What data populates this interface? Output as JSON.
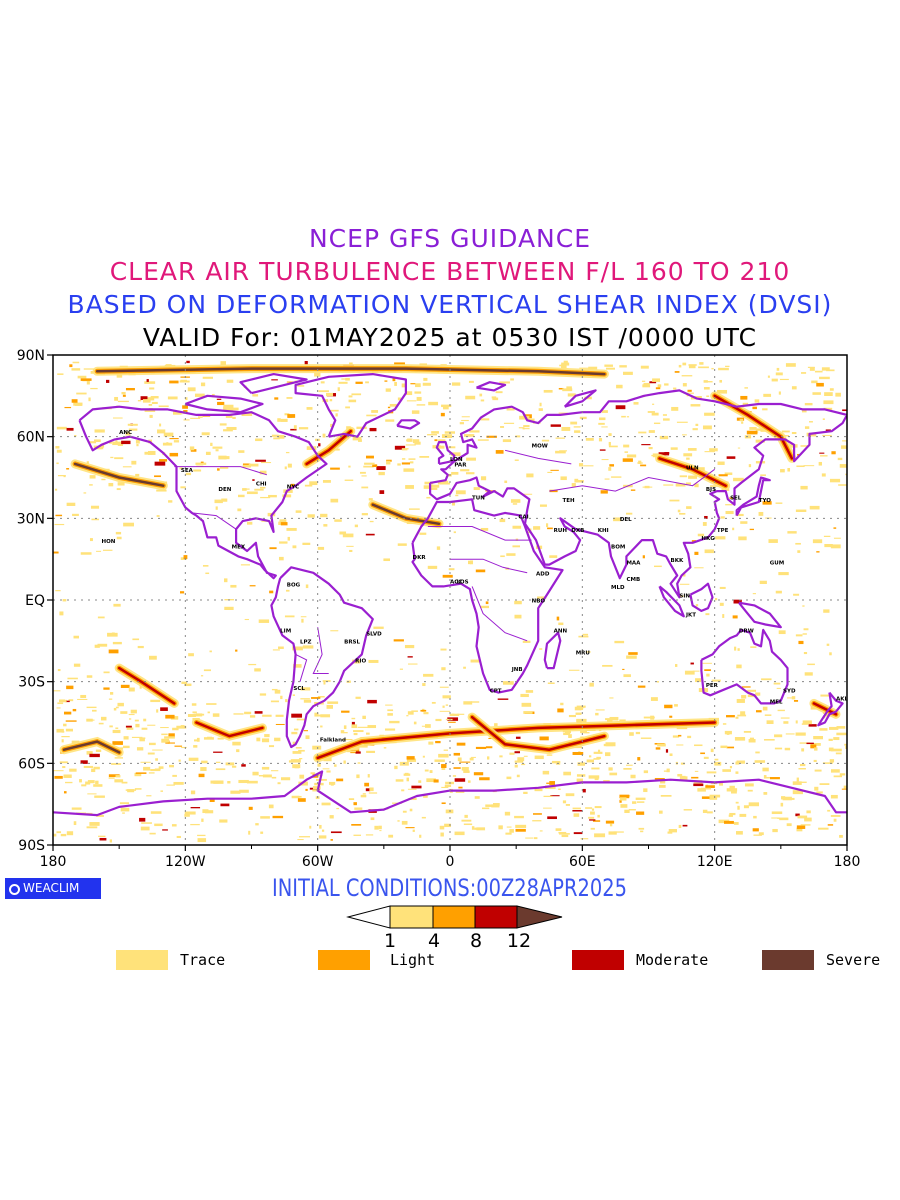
{
  "titles": {
    "line1": "NCEP GFS GUIDANCE",
    "line2": "CLEAR AIR TURBULENCE BETWEEN F/L 160 TO 210",
    "line3": "BASED ON DEFORMATION VERTICAL SHEAR INDEX (DVSI)",
    "line4": "VALID For: 01MAY2025 at 0530 IST /0000 UTC",
    "colors": {
      "line1": "#8a1fd6",
      "line2": "#e0187a",
      "line3": "#2a3ff0",
      "line4": "#000000"
    }
  },
  "axes": {
    "y_ticks": [
      "90N",
      "60N",
      "30N",
      "EQ",
      "30S",
      "60S",
      "90S"
    ],
    "x_ticks": [
      "180",
      "120W",
      "60W",
      "0",
      "60E",
      "120E",
      "180"
    ]
  },
  "logo": {
    "text": "WEACLIM",
    "icon": "circle-logo-icon"
  },
  "initial_conditions": "INITIAL CONDITIONS:00Z28APR2025",
  "colorbar": {
    "ticks": [
      "1",
      "4",
      "8",
      "12"
    ],
    "colors": [
      "#ffffff",
      "#ffe27a",
      "#ffa000",
      "#c00000",
      "#6b3a2e"
    ]
  },
  "legend": [
    {
      "label": "Trace",
      "color": "#ffe27a"
    },
    {
      "label": "Light",
      "color": "#ffa000"
    },
    {
      "label": "Moderate",
      "color": "#c00000"
    },
    {
      "label": "Severe",
      "color": "#6b3a2e"
    }
  ],
  "map": {
    "coastline_color": "#9a1fd0",
    "grid_color": "#888888"
  },
  "station_labels": [
    "ANC",
    "SEA",
    "DEN",
    "CHI",
    "NYC",
    "MEX",
    "HON",
    "BOG",
    "LIM",
    "SCL",
    "RIO",
    "BRSL",
    "SLVD",
    "LPZ",
    "Falkland",
    "LON",
    "PAR",
    "MOW",
    "CAI",
    "DXB",
    "TEH",
    "KHI",
    "DEL",
    "BOM",
    "MAA",
    "CMB",
    "MLD",
    "BKK",
    "SIN",
    "HKG",
    "TPE",
    "TYO",
    "SEL",
    "BJS",
    "ULN",
    "JKT",
    "DRW",
    "PER",
    "SYD",
    "MEL",
    "AKL",
    "GUM",
    "NBO",
    "ADD",
    "JNB",
    "CPT",
    "LOS",
    "ACC",
    "DKR",
    "TUN",
    "RUH",
    "MRU",
    "ANN"
  ]
}
